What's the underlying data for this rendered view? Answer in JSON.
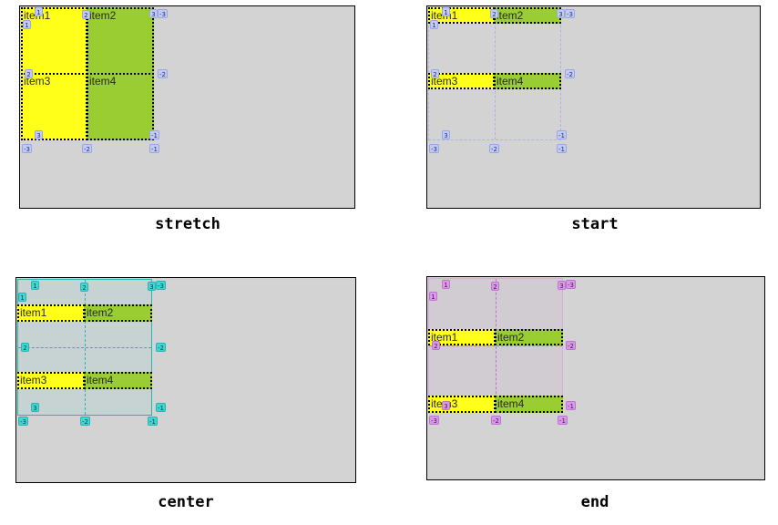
{
  "panels": [
    {
      "caption": "stretch",
      "items": [
        "item1",
        "item2",
        "item3",
        "item4"
      ],
      "line_numbers": {
        "column_start": [
          "1",
          "2",
          "3"
        ],
        "column_end": [
          "-3",
          "-2",
          "-1"
        ],
        "row_start": [
          "1",
          "2",
          "3"
        ],
        "row_end": [
          "-3",
          "-2",
          "-1"
        ]
      },
      "overlay_color": "#6b7fd7"
    },
    {
      "caption": "start",
      "items": [
        "item1",
        "item2",
        "item3",
        "item4"
      ],
      "line_numbers": {
        "column_start": [
          "1",
          "2",
          "3"
        ],
        "column_end": [
          "-3",
          "-2",
          "-1"
        ],
        "row_start": [
          "1",
          "2",
          "3"
        ],
        "row_end": [
          "-3",
          "-2",
          "-1"
        ]
      },
      "overlay_color": "#6b7fd7"
    },
    {
      "caption": "center",
      "items": [
        "item1",
        "item2",
        "item3",
        "item4"
      ],
      "line_numbers": {
        "column_start": [
          "1",
          "2",
          "3"
        ],
        "column_end": [
          "-3",
          "-2",
          "-1"
        ],
        "row_start": [
          "1",
          "2",
          "3"
        ],
        "row_end": [
          "-3",
          "-2",
          "-1"
        ]
      },
      "overlay_color": "#2bb3b0"
    },
    {
      "caption": "end",
      "items": [
        "item1",
        "item2",
        "item3",
        "item4"
      ],
      "line_numbers": {
        "column_start": [
          "1",
          "2",
          "3"
        ],
        "column_end": [
          "-3",
          "-2",
          "-1"
        ],
        "row_start": [
          "1",
          "2",
          "3"
        ],
        "row_end": [
          "-3",
          "-2",
          "-1"
        ]
      },
      "overlay_color": "#bf72d1"
    }
  ]
}
